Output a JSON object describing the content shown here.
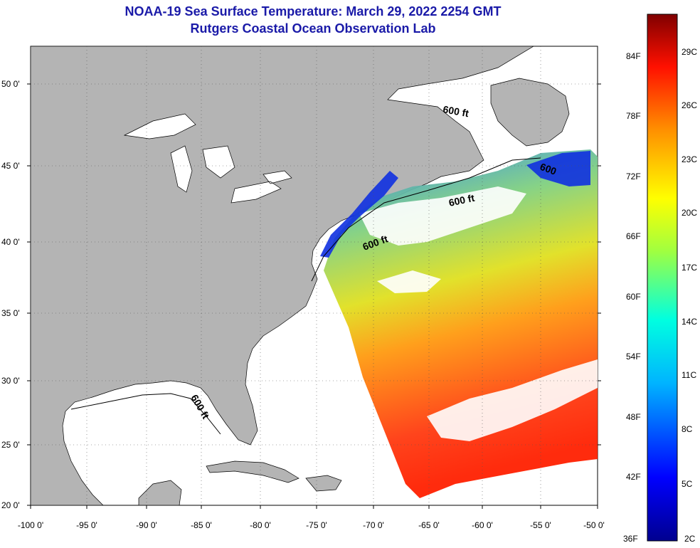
{
  "title_line1": "NOAA-19 Sea Surface Temperature:  March 29, 2022 2254 GMT",
  "title_line2": "Rutgers Coastal Ocean Observation Lab",
  "lat_labels": [
    "50 0'",
    "45 0'",
    "40 0'",
    "35 0'",
    "30 0'",
    "25 0'",
    "20 0'"
  ],
  "lon_labels": [
    "-100 0'",
    "-95 0'",
    "-90 0'",
    "-85 0'",
    "-80 0'",
    "-75 0'",
    "-70 0'",
    "-65 0'",
    "-60 0'",
    "-55 0'",
    "-50 0'"
  ],
  "contour_labels": [
    "600 ft",
    "600 ft",
    "600 ft",
    "600 ft",
    "600"
  ],
  "colorbar": {
    "fahrenheit": [
      "84F",
      "78F",
      "72F",
      "66F",
      "60F",
      "54F",
      "48F",
      "42F",
      "36F"
    ],
    "celsius": [
      "29C",
      "26C",
      "23C",
      "20C",
      "17C",
      "14C",
      "11C",
      "8C",
      "5C",
      "2C"
    ]
  },
  "colors": {
    "title": "#1a1aa8",
    "land": "#b4b4b4",
    "ocean_no_data": "#ffffff"
  }
}
